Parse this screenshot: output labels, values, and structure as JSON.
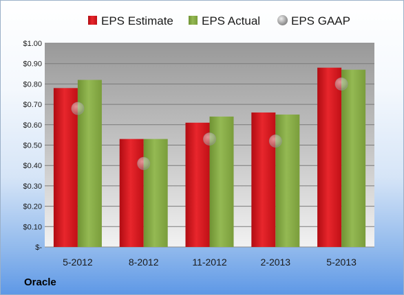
{
  "company": "Oracle",
  "chart_data": {
    "type": "bar",
    "categories": [
      "5-2012",
      "8-2012",
      "11-2012",
      "2-2013",
      "5-2013"
    ],
    "series": [
      {
        "name": "EPS Estimate",
        "values": [
          0.78,
          0.53,
          0.61,
          0.66,
          0.88
        ],
        "color": "#d9141c"
      },
      {
        "name": "EPS Actual",
        "values": [
          0.82,
          0.53,
          0.64,
          0.65,
          0.87
        ],
        "color": "#88ad45"
      },
      {
        "name": "EPS GAAP",
        "type": "scatter",
        "values": [
          0.68,
          0.41,
          0.53,
          0.52,
          0.8
        ],
        "color": "#a8a8a8"
      }
    ],
    "yticks": [
      "$-",
      "$0.10",
      "$0.20",
      "$0.30",
      "$0.40",
      "$0.50",
      "$0.60",
      "$0.70",
      "$0.80",
      "$0.90",
      "$1.00"
    ],
    "ylim": [
      0,
      1.0
    ],
    "grid": true,
    "legend_position": "top"
  }
}
